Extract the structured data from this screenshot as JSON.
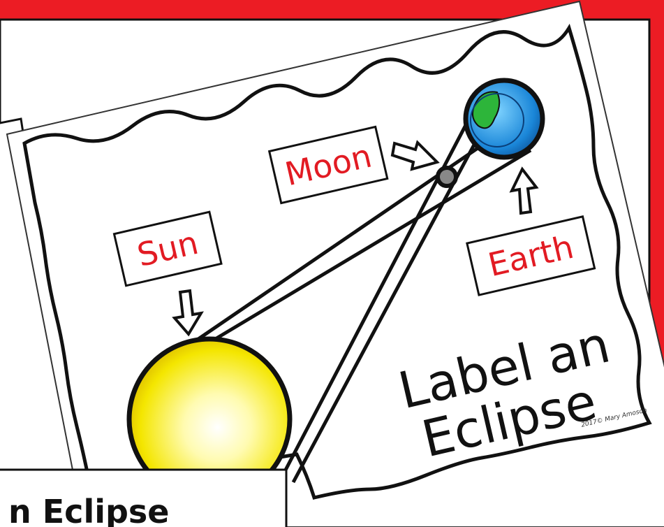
{
  "labels": {
    "sun": "Sun",
    "moon": "Moon",
    "earth": "Earth"
  },
  "title": {
    "line1": "Label an",
    "line2": "Eclipse"
  },
  "copyright": "2017© Mary Amoson",
  "caption": "n Eclipse"
}
